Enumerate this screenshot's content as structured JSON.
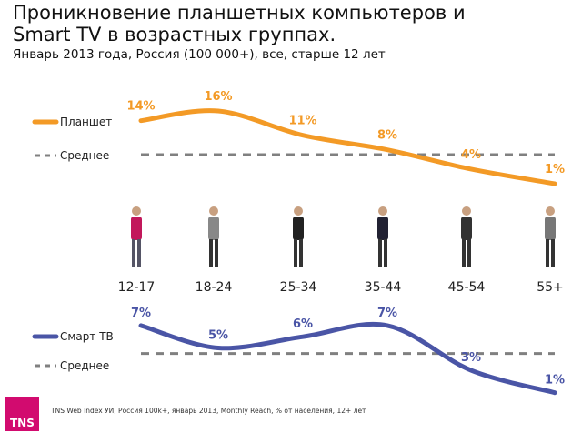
{
  "title_line1": "Проникновение планшетных компьютеров и",
  "title_line2": "Smart TV в возрастных группах.",
  "subtitle": "Январь 2013 года, Россия (100 000+), все, старше 12 лет",
  "footer": "TNS Web Index  УИ, Россия 100k+, январь 2013, Monthly Reach, % от населения, 12+ лет",
  "logo": "TNS",
  "chart_data": [
    {
      "type": "line",
      "categories": [
        "12-17",
        "18-24",
        "25-34",
        "35-44",
        "45-54",
        "55+"
      ],
      "series": [
        {
          "name": "Планшет",
          "values": [
            14,
            16,
            11,
            8,
            4,
            1
          ],
          "labels": [
            "14%",
            "16%",
            "11%",
            "8%",
            "4%",
            "1%"
          ],
          "color": "#f39a26"
        },
        {
          "name": "Среднее",
          "values": [
            7,
            7,
            7,
            7,
            7,
            7
          ],
          "color": "#808080",
          "style": "dashed"
        }
      ]
    },
    {
      "type": "line",
      "categories": [
        "12-17",
        "18-24",
        "25-34",
        "35-44",
        "45-54",
        "55+"
      ],
      "series": [
        {
          "name": "Смарт ТВ",
          "values": [
            7,
            5,
            6,
            7,
            3,
            1
          ],
          "labels": [
            "7%",
            "5%",
            "6%",
            "7%",
            "3%",
            "1%"
          ],
          "color": "#4a55a6"
        },
        {
          "name": "Среднее",
          "values": [
            4.5,
            4.5,
            4.5,
            4.5,
            4.5,
            4.5
          ],
          "color": "#808080",
          "style": "dashed"
        }
      ]
    }
  ]
}
